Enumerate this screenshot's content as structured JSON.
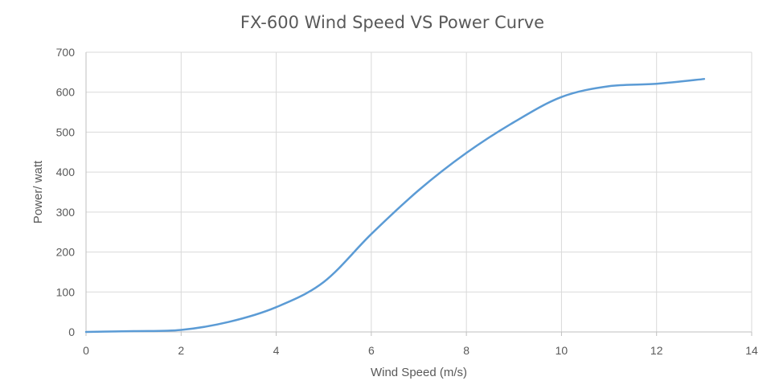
{
  "chart_data": {
    "type": "line",
    "title": "FX-600 Wind Speed VS Power Curve",
    "xlabel": "Wind Speed (m/s)",
    "ylabel": "Power/ watt",
    "xlim": [
      0,
      14
    ],
    "ylim": [
      0,
      700
    ],
    "x_ticks": [
      0,
      2,
      4,
      6,
      8,
      10,
      12,
      14
    ],
    "y_ticks": [
      0,
      100,
      200,
      300,
      400,
      500,
      600,
      700
    ],
    "grid": true,
    "legend": "none",
    "series": [
      {
        "name": "Power",
        "color": "#5b9bd5",
        "x": [
          0,
          1,
          2,
          3,
          4,
          5,
          6,
          7,
          8,
          9,
          10,
          11,
          12,
          13
        ],
        "y": [
          0,
          2,
          5,
          25,
          62,
          125,
          245,
          355,
          448,
          525,
          588,
          615,
          621,
          633
        ]
      }
    ]
  }
}
